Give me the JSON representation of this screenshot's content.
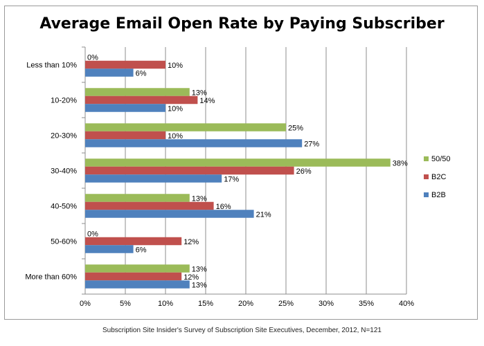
{
  "chart_data": {
    "type": "bar",
    "orientation": "horizontal",
    "title": "Average Email Open Rate by Paying Subscriber",
    "footer": "Subscription Site Insider's Survey of Subscription Site Executives, December, 2012, N=121",
    "categories": [
      "Less than 10%",
      "10-20%",
      "20-30%",
      "30-40%",
      "40-50%",
      "50-60%",
      "More than 60%"
    ],
    "series": [
      {
        "name": "50/50",
        "color": "#9bbb59",
        "values": [
          0,
          13,
          25,
          38,
          13,
          0,
          13
        ],
        "labels": [
          "0%",
          "13%",
          "25%",
          "38%",
          "13%",
          "0%",
          "13%"
        ]
      },
      {
        "name": "B2C",
        "color": "#c0504d",
        "values": [
          10,
          14,
          10,
          26,
          16,
          12,
          12
        ],
        "labels": [
          "10%",
          "14%",
          "10%",
          "26%",
          "16%",
          "12%",
          "12%"
        ]
      },
      {
        "name": "B2B",
        "color": "#4f81bd",
        "values": [
          6,
          10,
          27,
          17,
          21,
          6,
          13
        ],
        "labels": [
          "6%",
          "10%",
          "27%",
          "17%",
          "21%",
          "6%",
          "13%"
        ]
      }
    ],
    "xlim": [
      0,
      40
    ],
    "xticks": [
      0,
      5,
      10,
      15,
      20,
      25,
      30,
      35,
      40
    ],
    "xtick_labels": [
      "0%",
      "5%",
      "10%",
      "15%",
      "20%",
      "25%",
      "30%",
      "35%",
      "40%"
    ],
    "grid": true,
    "legend_position": "right"
  }
}
